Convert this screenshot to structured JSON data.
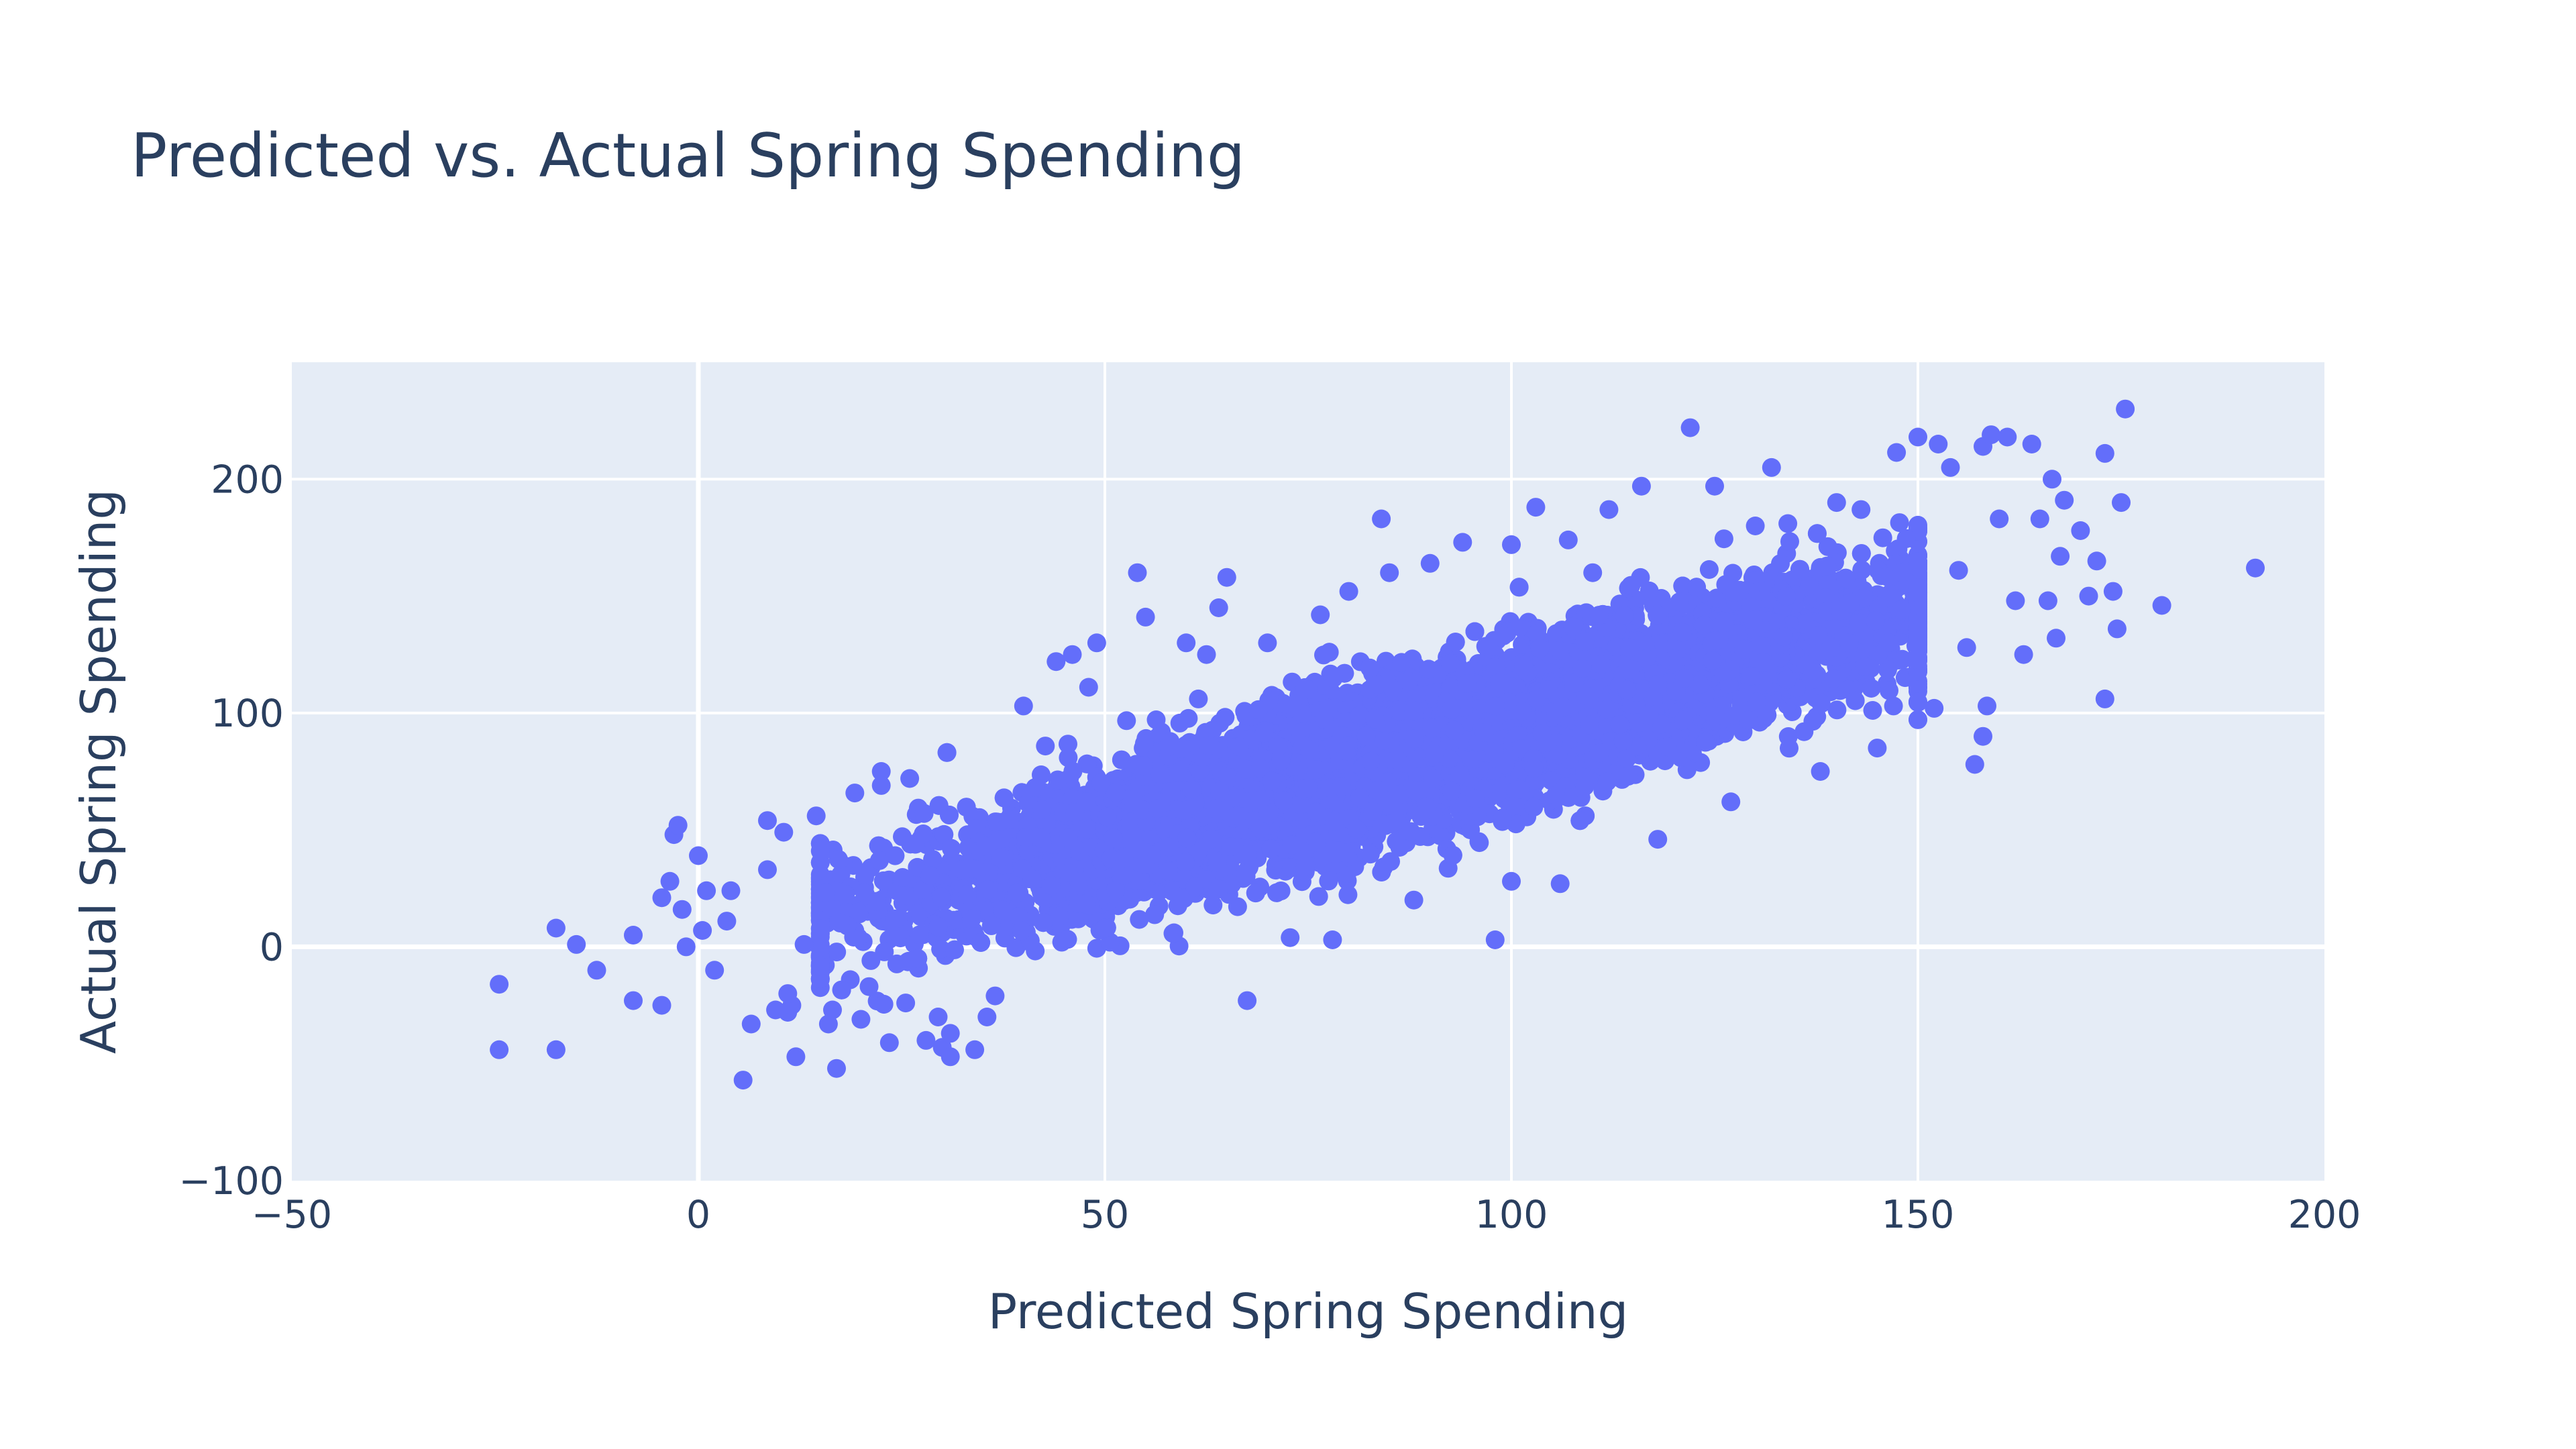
{
  "chart_data": {
    "type": "scatter",
    "title": "Predicted vs. Actual Spring Spending",
    "xlabel": "Predicted Spring Spending",
    "ylabel": "Actual Spring Spending",
    "xlim": [
      -50,
      200
    ],
    "ylim": [
      -100,
      250
    ],
    "x_ticks": [
      -50,
      0,
      50,
      100,
      150,
      200
    ],
    "y_ticks": [
      -100,
      0,
      100,
      200
    ],
    "x_tick_labels": [
      "−50",
      "0",
      "50",
      "100",
      "150",
      "200"
    ],
    "y_tick_labels": [
      "−100",
      "0",
      "100",
      "200"
    ],
    "grid": true,
    "legend": "none",
    "series": [
      {
        "color": "#636efa",
        "points": [
          [
            -24.5,
            -16
          ],
          [
            -24.5,
            -44
          ],
          [
            -17.5,
            -44
          ],
          [
            -17.5,
            8
          ],
          [
            -15,
            1
          ],
          [
            -12.5,
            -10
          ],
          [
            -8,
            5
          ],
          [
            -8,
            -23
          ],
          [
            -4.5,
            -25
          ],
          [
            -4.5,
            21
          ],
          [
            -3.5,
            28
          ],
          [
            -3,
            48
          ],
          [
            -2.5,
            52
          ],
          [
            -2,
            16
          ],
          [
            -1.5,
            0
          ],
          [
            0,
            39
          ],
          [
            1,
            24
          ],
          [
            0.5,
            7
          ],
          [
            2,
            -10
          ],
          [
            3.5,
            11
          ],
          [
            4,
            24
          ],
          [
            5.5,
            -57
          ],
          [
            6.5,
            -33
          ],
          [
            8.5,
            54
          ],
          [
            8.5,
            33
          ],
          [
            10.5,
            49
          ],
          [
            9.5,
            -27
          ],
          [
            11,
            -28
          ],
          [
            11.5,
            -25
          ],
          [
            11,
            -20
          ],
          [
            12,
            -47
          ],
          [
            13,
            1
          ],
          [
            14.5,
            56
          ],
          [
            15,
            41
          ],
          [
            16.5,
            -27
          ],
          [
            16,
            -33
          ],
          [
            17,
            -52
          ],
          [
            20,
            -31
          ],
          [
            21,
            -17
          ],
          [
            22.5,
            75
          ],
          [
            22.5,
            69
          ],
          [
            23.5,
            -41
          ],
          [
            25.5,
            -24
          ],
          [
            26,
            72
          ],
          [
            28,
            -40
          ],
          [
            29.5,
            -30
          ],
          [
            30,
            -43
          ],
          [
            31,
            -47
          ],
          [
            31,
            -37
          ],
          [
            34,
            -44
          ],
          [
            35.5,
            -30
          ],
          [
            36.5,
            -21
          ],
          [
            40,
            103
          ],
          [
            44,
            122
          ],
          [
            46,
            125
          ],
          [
            48,
            111
          ],
          [
            49,
            130
          ],
          [
            54,
            160
          ],
          [
            55,
            141
          ],
          [
            58.5,
            6
          ],
          [
            60,
            130
          ],
          [
            61.5,
            106
          ],
          [
            62.5,
            125
          ],
          [
            64,
            145
          ],
          [
            65,
            158
          ],
          [
            67.5,
            -23
          ],
          [
            70,
            130
          ],
          [
            73,
            103
          ],
          [
            76.5,
            142
          ],
          [
            78,
            3
          ],
          [
            80,
            152
          ],
          [
            84,
            183
          ],
          [
            85,
            160
          ],
          [
            88,
            20
          ],
          [
            90,
            164
          ],
          [
            94,
            173
          ],
          [
            96,
            45
          ],
          [
            98,
            3
          ],
          [
            100,
            172
          ],
          [
            100,
            28
          ],
          [
            103,
            188
          ],
          [
            106,
            27
          ],
          [
            107,
            174
          ],
          [
            110,
            160
          ],
          [
            112,
            187
          ],
          [
            116,
            197
          ],
          [
            118,
            46
          ],
          [
            122,
            222
          ],
          [
            125,
            197
          ],
          [
            127,
            62
          ],
          [
            130,
            180
          ],
          [
            132,
            205
          ],
          [
            134,
            181
          ],
          [
            136,
            92
          ],
          [
            138,
            75
          ],
          [
            140,
            190
          ],
          [
            143,
            187
          ],
          [
            145,
            85
          ],
          [
            147,
            103
          ],
          [
            148,
            160
          ],
          [
            150,
            218
          ],
          [
            152,
            102
          ],
          [
            152.5,
            215
          ],
          [
            154,
            205
          ],
          [
            155,
            161
          ],
          [
            156,
            128
          ],
          [
            157,
            78
          ],
          [
            158,
            214
          ],
          [
            158,
            90
          ],
          [
            158.5,
            103
          ],
          [
            159,
            219
          ],
          [
            160,
            183
          ],
          [
            161,
            218
          ],
          [
            162,
            148
          ],
          [
            163,
            125
          ],
          [
            164,
            215
          ],
          [
            165,
            183
          ],
          [
            166,
            148
          ],
          [
            166.5,
            200
          ],
          [
            167,
            132
          ],
          [
            167.5,
            167
          ],
          [
            168,
            191
          ],
          [
            170,
            178
          ],
          [
            171,
            150
          ],
          [
            172,
            165
          ],
          [
            173,
            211
          ],
          [
            173,
            106
          ],
          [
            174,
            152
          ],
          [
            174.5,
            136
          ],
          [
            175,
            190
          ],
          [
            175.5,
            230
          ],
          [
            180,
            146
          ],
          [
            191.5,
            162
          ]
        ]
      }
    ],
    "dense_cloud": {
      "trend": {
        "intercept": -4.5,
        "slope": 1.0
      },
      "spread_sd": 16,
      "x_center": 90,
      "x_sd": 30,
      "n": 9000
    }
  }
}
